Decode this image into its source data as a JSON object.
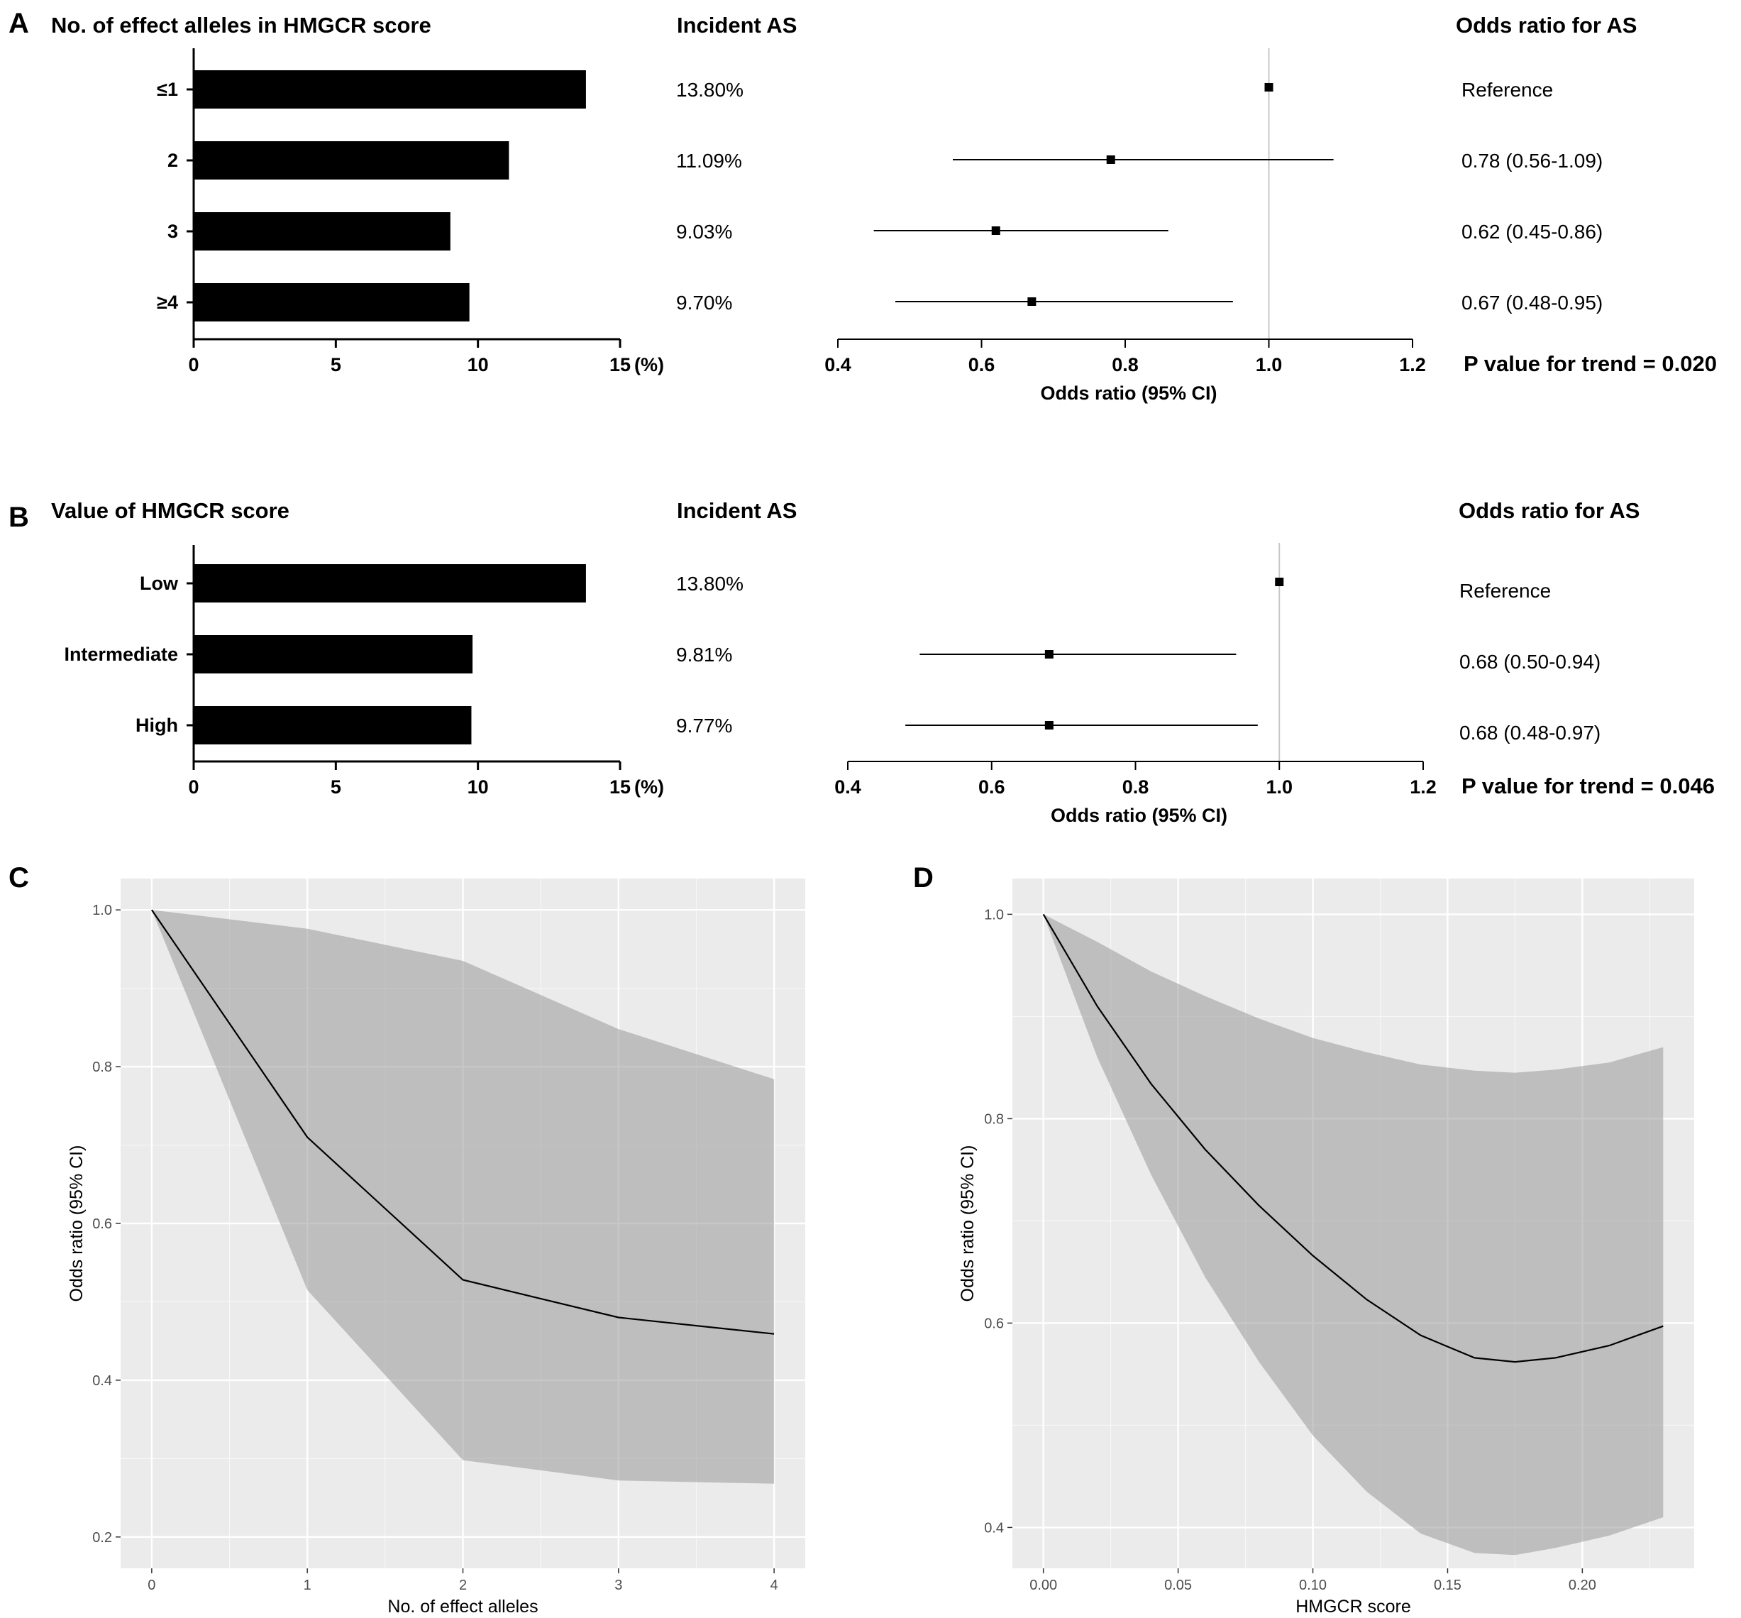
{
  "panel_labels": [
    "A",
    "B",
    "C",
    "D"
  ],
  "chart_data": [
    {
      "type": "bar",
      "panel": "A",
      "title": "No. of effect alleles in HMGCR score",
      "categories": [
        "≤1",
        "2",
        "3",
        "≥4"
      ],
      "values": [
        13.8,
        11.09,
        9.03,
        9.7
      ],
      "value_labels": [
        "13.80%",
        "11.09%",
        "9.03%",
        "9.70%"
      ],
      "value_header": "Incident AS",
      "xticks": [
        "0",
        "5",
        "10",
        "15"
      ],
      "xunit": "(%)",
      "xlim": [
        0,
        15
      ]
    },
    {
      "type": "scatter",
      "subtype": "forest",
      "panel": "A",
      "header": "Odds ratio for AS",
      "categories": [
        "≤1",
        "2",
        "3",
        "≥4"
      ],
      "estimates": [
        1.0,
        0.78,
        0.62,
        0.67
      ],
      "lower": [
        null,
        0.56,
        0.45,
        0.48
      ],
      "upper": [
        null,
        1.09,
        0.86,
        0.95
      ],
      "or_labels": [
        "Reference",
        "0.78 (0.56-1.09)",
        "0.62 (0.45-0.86)",
        "0.67 (0.48-0.95)"
      ],
      "xlabel": "Odds ratio (95% CI)",
      "xticks": [
        "0.4",
        "0.6",
        "0.8",
        "1.0",
        "1.2"
      ],
      "xlim": [
        0.4,
        1.2
      ],
      "reference_line": 1.0,
      "p_trend": "P value for trend = 0.020"
    },
    {
      "type": "bar",
      "panel": "B",
      "title": "Value of HMGCR score",
      "categories": [
        "Low",
        "Intermediate",
        "High"
      ],
      "values": [
        13.8,
        9.81,
        9.77
      ],
      "value_labels": [
        "13.80%",
        "9.81%",
        "9.77%"
      ],
      "value_header": "Incident AS",
      "xticks": [
        "0",
        "5",
        "10",
        "15"
      ],
      "xunit": "(%)",
      "xlim": [
        0,
        15
      ]
    },
    {
      "type": "scatter",
      "subtype": "forest",
      "panel": "B",
      "header": "Odds ratio for AS",
      "categories": [
        "Low",
        "Intermediate",
        "High"
      ],
      "estimates": [
        1.0,
        0.68,
        0.68
      ],
      "lower": [
        null,
        0.5,
        0.48
      ],
      "upper": [
        null,
        0.94,
        0.97
      ],
      "or_labels": [
        "Reference",
        "0.68 (0.50-0.94)",
        "0.68 (0.48-0.97)"
      ],
      "xlabel": "Odds ratio (95% CI)",
      "xticks": [
        "0.4",
        "0.6",
        "0.8",
        "1.0",
        "1.2"
      ],
      "xlim": [
        0.4,
        1.2
      ],
      "reference_line": 1.0,
      "p_trend": "P value for trend = 0.046"
    },
    {
      "type": "area",
      "panel": "C",
      "xlabel": "No. of effect alleles",
      "ylabel": "Odds ratio (95% CI)",
      "xlim": [
        -0.2,
        4.2
      ],
      "ylim": [
        0.16,
        1.04
      ],
      "xticks": [
        "0",
        "1",
        "2",
        "3",
        "4"
      ],
      "yticks": [
        "0.2",
        "0.4",
        "0.6",
        "0.8",
        "1.0"
      ],
      "x": [
        0,
        1,
        2,
        3,
        4
      ],
      "line": [
        1.0,
        0.71,
        0.528,
        0.48,
        0.459
      ],
      "lower": [
        1.0,
        0.515,
        0.298,
        0.272,
        0.268
      ],
      "upper": [
        1.0,
        0.976,
        0.935,
        0.848,
        0.784
      ]
    },
    {
      "type": "area",
      "panel": "D",
      "xlabel": "HMGCR score",
      "ylabel": "Odds ratio (95% CI)",
      "xlim": [
        -0.0115,
        0.2415
      ],
      "ylim": [
        0.36,
        1.035
      ],
      "xticks": [
        "0.00",
        "0.05",
        "0.10",
        "0.15",
        "0.20"
      ],
      "yticks": [
        "0.4",
        "0.6",
        "0.8",
        "1.0"
      ],
      "x": [
        0,
        0.02,
        0.04,
        0.06,
        0.08,
        0.1,
        0.12,
        0.14,
        0.16,
        0.175,
        0.19,
        0.21,
        0.23
      ],
      "line": [
        1.0,
        0.91,
        0.834,
        0.77,
        0.715,
        0.666,
        0.623,
        0.588,
        0.566,
        0.562,
        0.566,
        0.578,
        0.597
      ],
      "lower": [
        1.0,
        0.86,
        0.745,
        0.645,
        0.562,
        0.49,
        0.435,
        0.394,
        0.375,
        0.373,
        0.38,
        0.392,
        0.41
      ],
      "upper": [
        1.0,
        0.973,
        0.944,
        0.92,
        0.898,
        0.879,
        0.865,
        0.853,
        0.847,
        0.845,
        0.848,
        0.855,
        0.87
      ]
    }
  ]
}
